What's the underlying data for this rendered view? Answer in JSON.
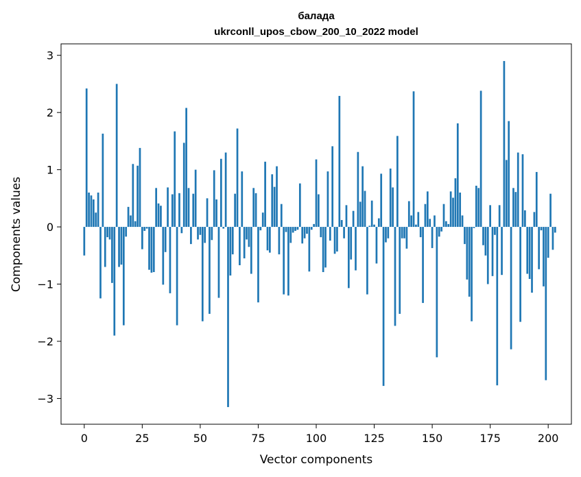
{
  "chart_data": {
    "type": "bar",
    "title": "балада",
    "subtitle": "ukrconll_upos_cbow_200_10_2022 model",
    "xlabel": "Vector components",
    "ylabel": "Components values",
    "xlim": [
      -10,
      210
    ],
    "ylim": [
      -3.45,
      3.2
    ],
    "xticks": [
      0,
      25,
      50,
      75,
      100,
      125,
      150,
      175,
      200
    ],
    "yticks": [
      -3,
      -2,
      -1,
      0,
      1,
      2,
      3
    ],
    "color": "#1f77b4",
    "values": [
      -0.5,
      2.42,
      0.6,
      0.55,
      0.48,
      0.25,
      0.6,
      -1.25,
      1.63,
      -0.7,
      -0.18,
      -0.22,
      -0.98,
      -1.9,
      2.5,
      -0.7,
      -0.66,
      -1.72,
      -0.17,
      0.35,
      0.2,
      1.1,
      0.1,
      1.07,
      1.38,
      -0.39,
      -0.07,
      -0.03,
      -0.75,
      -0.8,
      -0.79,
      0.68,
      0.41,
      0.37,
      -1.01,
      -0.44,
      0.69,
      -1.16,
      0.57,
      1.67,
      -1.72,
      0.59,
      -0.11,
      1.47,
      2.08,
      0.68,
      -0.3,
      0.58,
      1.0,
      -0.22,
      -0.14,
      -1.65,
      -0.28,
      0.5,
      -1.52,
      -0.23,
      0.99,
      0.48,
      -1.24,
      1.19,
      -0.03,
      1.3,
      -3.15,
      -0.85,
      -0.48,
      0.58,
      1.72,
      -0.67,
      0.97,
      -0.55,
      -0.22,
      -0.35,
      -0.82,
      0.68,
      0.59,
      -1.32,
      -0.06,
      0.25,
      1.14,
      -0.41,
      -0.45,
      0.92,
      0.7,
      1.06,
      -0.48,
      0.4,
      -1.18,
      -0.09,
      -1.2,
      -0.28,
      -0.1,
      -0.07,
      -0.05,
      0.76,
      -0.29,
      -0.2,
      -0.12,
      -0.78,
      -0.05,
      0.05,
      1.18,
      0.57,
      -0.18,
      -0.79,
      -0.71,
      0.97,
      -0.24,
      1.41,
      -0.47,
      -0.43,
      2.29,
      0.12,
      -0.2,
      0.38,
      -1.07,
      -0.57,
      0.28,
      -0.76,
      1.31,
      0.44,
      1.06,
      0.63,
      -1.18,
      0.02,
      0.46,
      0.04,
      -0.64,
      0.15,
      0.93,
      -2.78,
      -0.27,
      -0.2,
      1.02,
      0.69,
      -1.73,
      1.59,
      -1.52,
      -0.2,
      -0.2,
      -0.38,
      0.45,
      0.2,
      2.37,
      0.04,
      0.26,
      -0.18,
      -1.33,
      0.4,
      0.62,
      0.14,
      -0.37,
      0.2,
      -2.28,
      -0.17,
      -0.08,
      0.4,
      0.1,
      0.05,
      0.62,
      0.51,
      0.85,
      1.81,
      0.6,
      0.2,
      -0.3,
      -0.92,
      -1.22,
      -1.65,
      -0.02,
      0.72,
      0.68,
      2.38,
      -0.32,
      -0.5,
      -1.0,
      0.38,
      -0.86,
      -0.14,
      -2.77,
      0.38,
      -0.84,
      2.9,
      1.17,
      1.85,
      -2.14,
      0.68,
      0.61,
      1.3,
      -1.66,
      1.27,
      0.29,
      -0.82,
      -0.91,
      -1.15,
      0.26,
      0.96,
      -0.74,
      -0.06,
      -1.04,
      -2.68,
      -0.54,
      0.58,
      -0.4,
      -0.1
    ]
  }
}
